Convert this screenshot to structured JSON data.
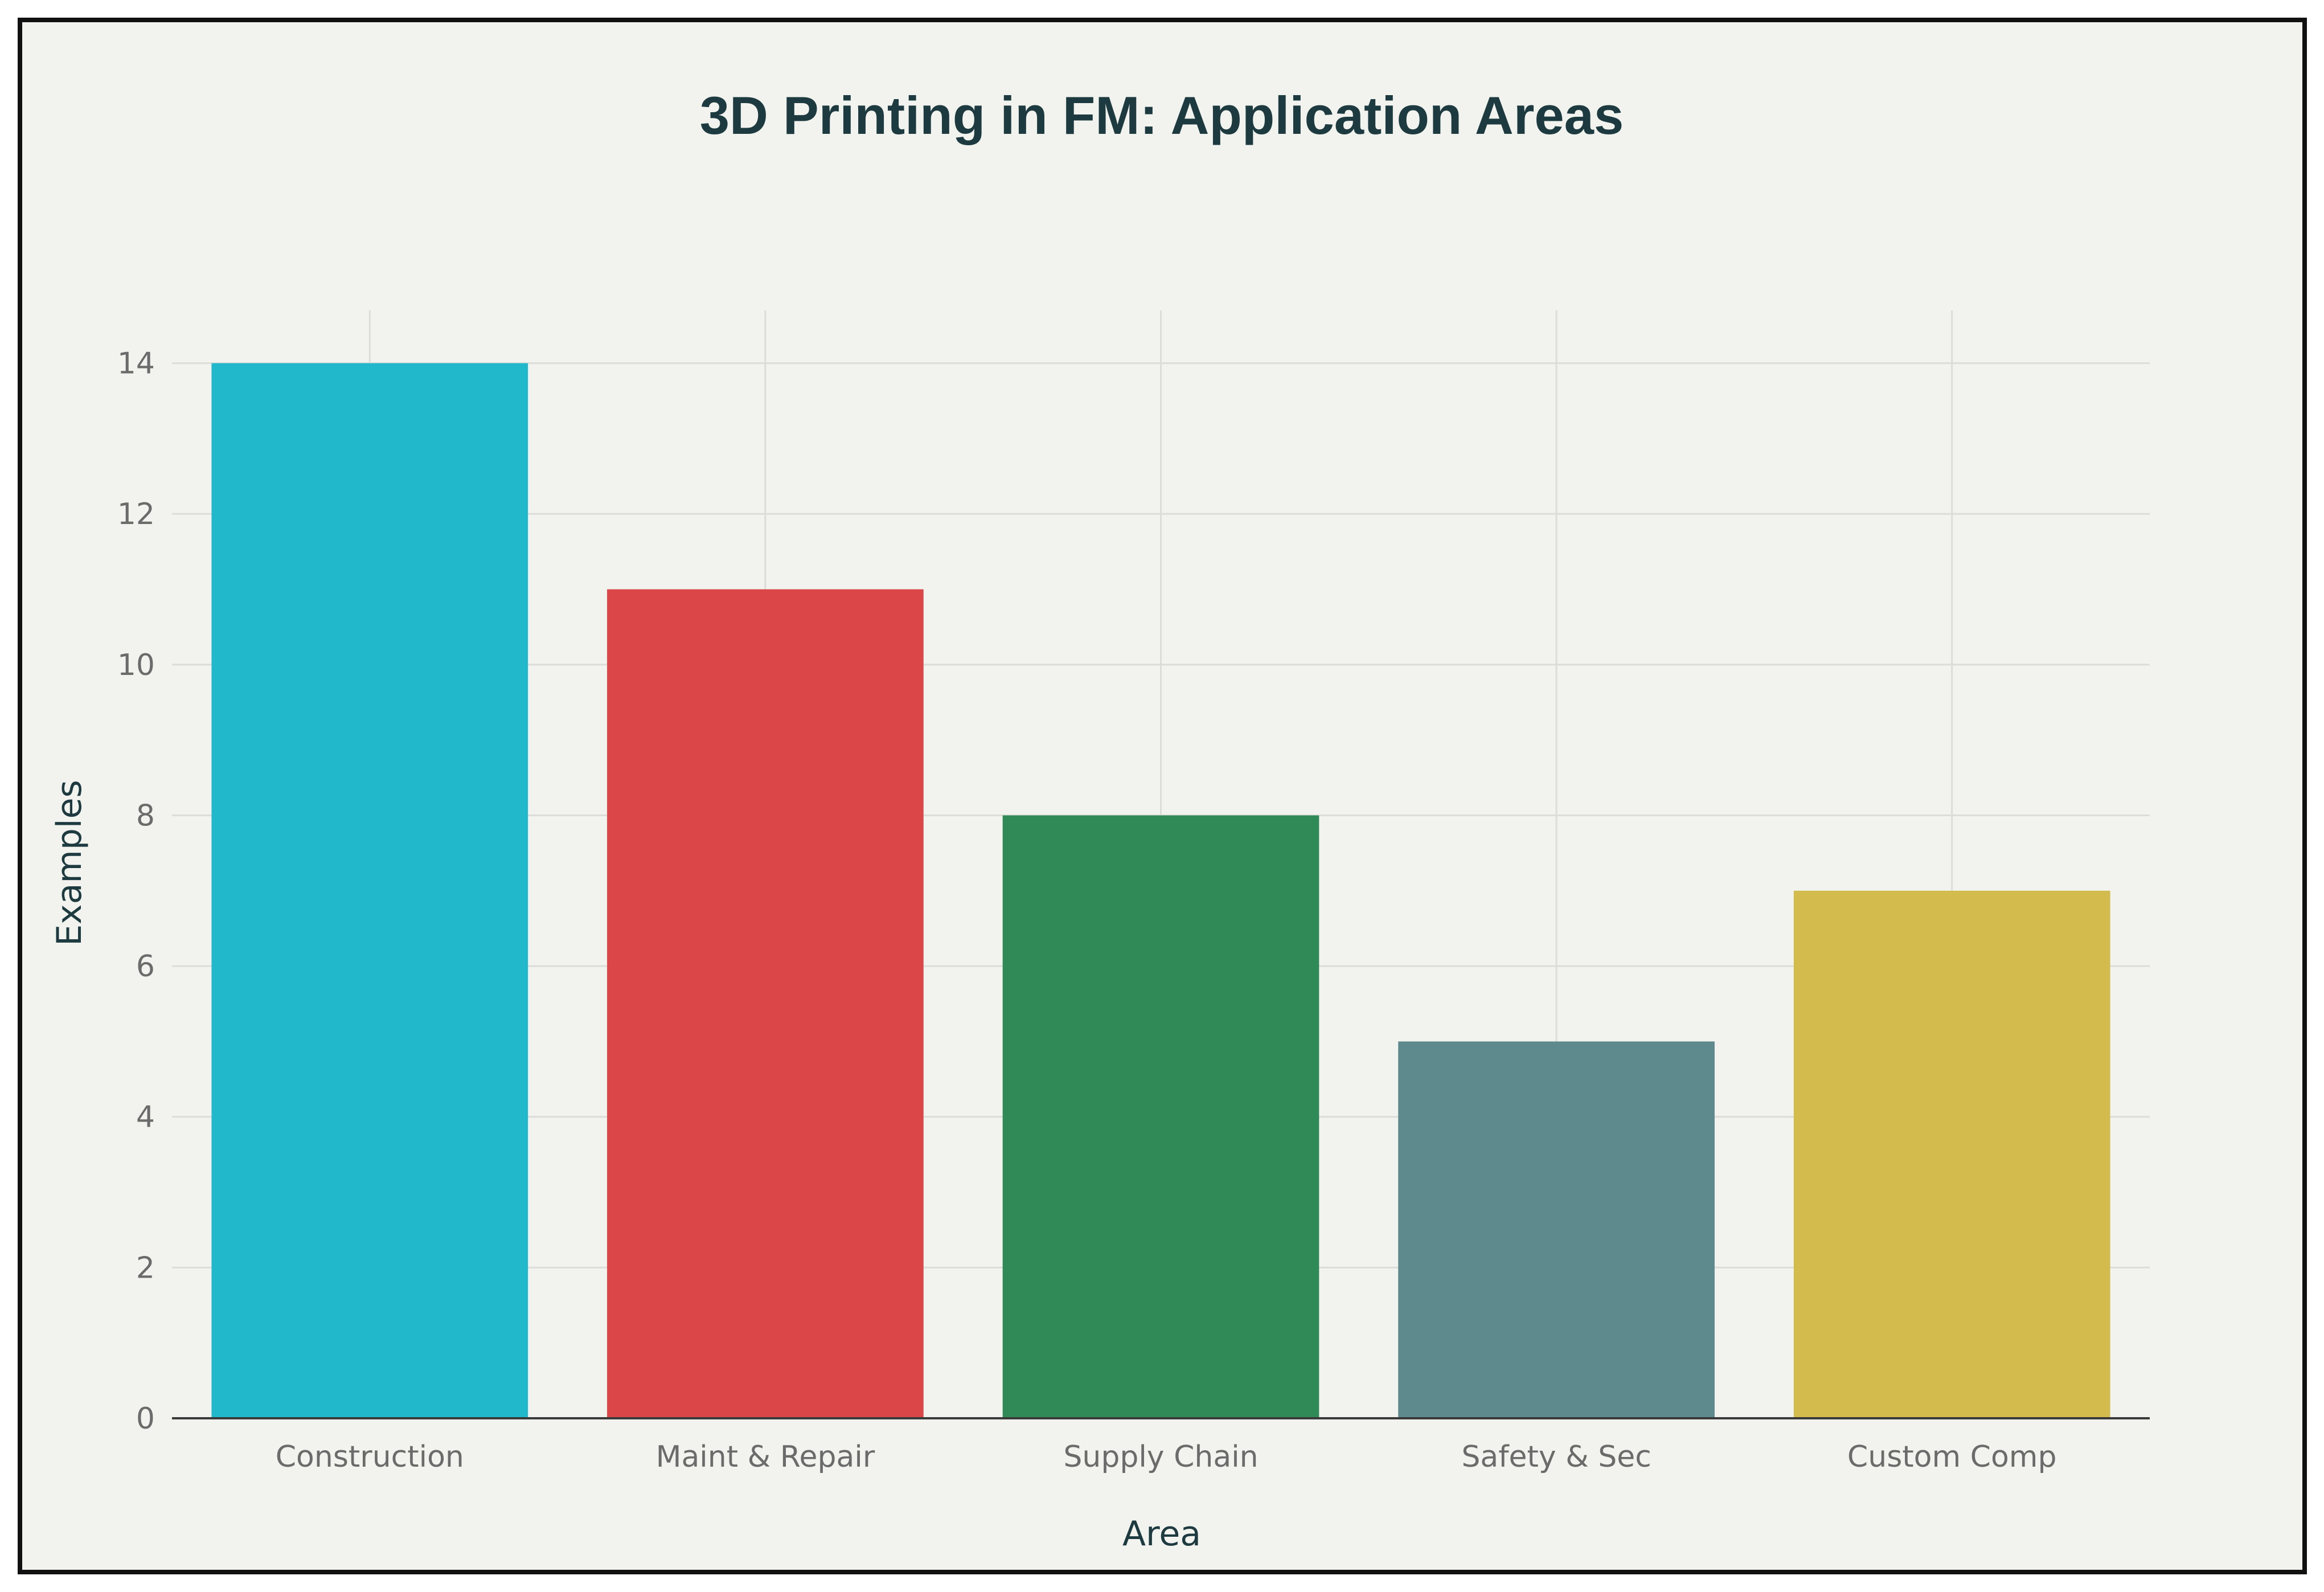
{
  "chart_data": {
    "type": "bar",
    "title": "3D Printing in FM: Application Areas",
    "xlabel": "Area",
    "ylabel": "Examples",
    "categories": [
      "Construction",
      "Maint & Repair",
      "Supply Chain",
      "Safety & Sec",
      "Custom Comp"
    ],
    "values": [
      14,
      11,
      8,
      5,
      7
    ],
    "colors": [
      "#21b8cc",
      "#db4648",
      "#2f8a57",
      "#5e8a8e",
      "#d3bb4d"
    ],
    "ylim": [
      0,
      14.7
    ],
    "yticks": [
      0,
      2,
      4,
      6,
      8,
      10,
      12,
      14
    ],
    "grid": true,
    "legend": "none"
  }
}
